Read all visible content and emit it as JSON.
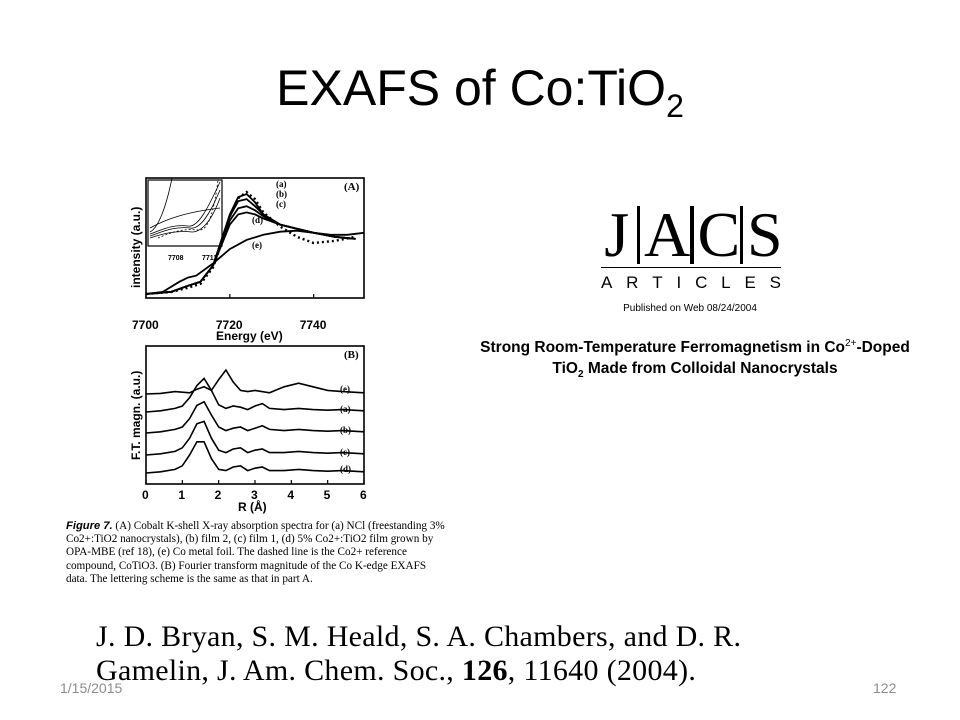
{
  "slide": {
    "title_main": "EXAFS of Co:TiO",
    "title_sub": "2",
    "date": "1/15/2015",
    "page_number": "122"
  },
  "jacs": {
    "letters": [
      "J",
      "A",
      "C",
      "S"
    ],
    "articles": [
      "A",
      "R",
      "T",
      "I",
      "C",
      "L",
      "E",
      "S"
    ],
    "published": "Published on Web 08/24/2004",
    "title_line1_a": "Strong Room-Temperature Ferromagnetism in Co",
    "title_line1_sup": "2+",
    "title_line1_b": "-Doped",
    "title_line2_a": "TiO",
    "title_line2_sub": "2",
    "title_line2_b": " Made from Colloidal Nanocrystals"
  },
  "figure": {
    "caption_label": "Figure 7.",
    "caption_text": "(A) Cobalt K-shell X-ray absorption spectra for (a) NCl (freestanding 3% Co2+:TiO2 nanocrystals), (b) film 2, (c) film 1, (d) 5% Co2+:TiO2 film grown by OPA-MBE (ref 18), (e) Co metal foil. The dashed line is the Co2+ reference compound, CoTiO3. (B) Fourier transform magnitude of the Co K-edge EXAFS data. The lettering scheme is the same as that in part A."
  },
  "citation": {
    "line1": "J. D. Bryan, S. M. Heald, S. A. Chambers,  and D. R.",
    "line2_a": "Gamelin, J. Am. Chem. Soc., ",
    "line2_bold": "126",
    "line2_b": ", 11640 (2004)."
  },
  "chart_data": [
    {
      "type": "line",
      "panel_label": "(A)",
      "xlabel": "Energy (eV)",
      "ylabel": "intensity (a.u.)",
      "x_ticks": [
        7700,
        7720,
        7740
      ],
      "xlim": [
        7700,
        7752
      ],
      "series_labels": [
        "(a)",
        "(b)",
        "(c)",
        "(d)",
        "(e)"
      ],
      "inset": {
        "x_ticks": [
          7708,
          7712
        ]
      },
      "series": [
        {
          "name": "(a)",
          "x": [
            7700,
            7706,
            7710,
            7713,
            7716,
            7718,
            7720,
            7722,
            7724,
            7726,
            7728,
            7732,
            7736,
            7740,
            7745,
            7750
          ],
          "y": [
            0.02,
            0.04,
            0.1,
            0.14,
            0.3,
            0.55,
            0.8,
            0.97,
            1.0,
            0.92,
            0.8,
            0.7,
            0.66,
            0.62,
            0.58,
            0.56
          ]
        },
        {
          "name": "(b)",
          "x": [
            7700,
            7706,
            7710,
            7713,
            7716,
            7718,
            7720,
            7722,
            7724,
            7726,
            7728,
            7732,
            7736,
            7740,
            7745,
            7750
          ],
          "y": [
            0.02,
            0.04,
            0.1,
            0.14,
            0.3,
            0.55,
            0.78,
            0.93,
            0.95,
            0.88,
            0.8,
            0.7,
            0.66,
            0.62,
            0.58,
            0.56
          ]
        },
        {
          "name": "(c)",
          "x": [
            7700,
            7706,
            7710,
            7713,
            7716,
            7718,
            7720,
            7722,
            7724,
            7726,
            7728,
            7732,
            7736,
            7740,
            7745,
            7750
          ],
          "y": [
            0.02,
            0.04,
            0.1,
            0.14,
            0.3,
            0.52,
            0.74,
            0.86,
            0.88,
            0.84,
            0.78,
            0.7,
            0.66,
            0.62,
            0.58,
            0.56
          ]
        },
        {
          "name": "(d)",
          "x": [
            7700,
            7706,
            7710,
            7713,
            7716,
            7718,
            7720,
            7722,
            7724,
            7726,
            7728,
            7732,
            7736,
            7740,
            7745,
            7750
          ],
          "y": [
            0.02,
            0.04,
            0.1,
            0.14,
            0.3,
            0.5,
            0.7,
            0.8,
            0.82,
            0.8,
            0.76,
            0.7,
            0.66,
            0.62,
            0.58,
            0.56
          ]
        },
        {
          "name": "(e)",
          "x": [
            7700,
            7704,
            7708,
            7710,
            7712,
            7716,
            7720,
            7724,
            7728,
            7732,
            7736,
            7740,
            7744,
            7748,
            7752
          ],
          "y": [
            0.02,
            0.04,
            0.14,
            0.18,
            0.2,
            0.32,
            0.46,
            0.55,
            0.6,
            0.63,
            0.64,
            0.62,
            0.6,
            0.6,
            0.62
          ]
        },
        {
          "name": "CoTiO3",
          "dashed": true,
          "x": [
            7700,
            7706,
            7710,
            7713,
            7716,
            7718,
            7720,
            7722,
            7724,
            7726,
            7728,
            7732,
            7736,
            7740,
            7745,
            7750
          ],
          "y": [
            0.02,
            0.04,
            0.08,
            0.12,
            0.28,
            0.52,
            0.78,
            0.96,
            1.02,
            0.95,
            0.82,
            0.68,
            0.58,
            0.52,
            0.54,
            0.58
          ]
        }
      ]
    },
    {
      "type": "line",
      "panel_label": "(B)",
      "xlabel": "R (Å)",
      "ylabel": "F.T. magn. (a.u.)",
      "x_ticks": [
        0,
        1,
        2,
        3,
        4,
        5,
        6
      ],
      "xlim": [
        0,
        6
      ],
      "series_labels": [
        "(e)",
        "(a)",
        "(b)",
        "(c)",
        "(d)"
      ],
      "series": [
        {
          "name": "(e)",
          "offset": 4,
          "x": [
            0,
            0.4,
            0.8,
            1.0,
            1.2,
            1.4,
            1.6,
            1.8,
            2.0,
            2.2,
            2.4,
            2.6,
            2.8,
            3.0,
            3.4,
            3.8,
            4.2,
            4.6,
            5.0,
            5.4,
            6.0
          ],
          "y": [
            0,
            0.05,
            0.2,
            0.15,
            0.1,
            0.4,
            0.6,
            0.3,
            1.2,
            2.0,
            1.0,
            0.3,
            0.2,
            0.3,
            0.1,
            0.6,
            0.9,
            0.6,
            0.3,
            0.2,
            0.1
          ]
        },
        {
          "name": "(a)",
          "offset": 3,
          "x": [
            0,
            0.4,
            0.8,
            1.0,
            1.2,
            1.4,
            1.6,
            1.8,
            2.0,
            2.2,
            2.4,
            2.6,
            2.8,
            3.0,
            3.2,
            3.4,
            3.8,
            4.2,
            4.6,
            5.0,
            5.4,
            6.0
          ],
          "y": [
            0,
            0.1,
            0.3,
            0.5,
            1.2,
            2.2,
            2.8,
            1.8,
            0.6,
            0.3,
            0.5,
            0.4,
            0.2,
            0.5,
            0.7,
            0.3,
            0.2,
            0.3,
            0.2,
            0.15,
            0.2,
            0.1
          ]
        },
        {
          "name": "(b)",
          "offset": 2,
          "x": [
            0,
            0.4,
            0.8,
            1.0,
            1.2,
            1.4,
            1.6,
            1.8,
            2.0,
            2.2,
            2.4,
            2.6,
            2.8,
            3.0,
            3.2,
            3.4,
            3.8,
            4.2,
            4.6,
            5.0,
            5.4,
            6.0
          ],
          "y": [
            0,
            0.1,
            0.3,
            0.5,
            1.2,
            2.3,
            2.6,
            1.5,
            0.5,
            0.2,
            0.4,
            0.5,
            0.2,
            0.4,
            0.6,
            0.3,
            0.2,
            0.3,
            0.2,
            0.15,
            0.2,
            0.1
          ]
        },
        {
          "name": "(c)",
          "offset": 1,
          "x": [
            0,
            0.4,
            0.8,
            1.0,
            1.2,
            1.4,
            1.6,
            1.8,
            2.0,
            2.2,
            2.4,
            2.6,
            2.8,
            3.0,
            3.2,
            3.4,
            3.8,
            4.2,
            4.6,
            5.0,
            5.4,
            6.0
          ],
          "y": [
            0,
            0.1,
            0.3,
            0.6,
            1.4,
            2.6,
            2.8,
            1.4,
            0.4,
            0.2,
            0.5,
            0.6,
            0.2,
            0.4,
            0.5,
            0.2,
            0.2,
            0.3,
            0.2,
            0.15,
            0.2,
            0.1
          ]
        },
        {
          "name": "(d)",
          "offset": 0,
          "x": [
            0,
            0.4,
            0.8,
            1.0,
            1.2,
            1.4,
            1.6,
            1.8,
            2.0,
            2.2,
            2.4,
            2.6,
            2.8,
            3.0,
            3.2,
            3.4,
            3.8,
            4.2,
            4.6,
            5.0,
            5.4,
            6.0
          ],
          "y": [
            0,
            0.1,
            0.3,
            0.6,
            1.5,
            2.6,
            2.6,
            1.2,
            0.3,
            0.2,
            0.5,
            0.6,
            0.2,
            0.4,
            0.5,
            0.2,
            0.2,
            0.3,
            0.2,
            0.15,
            0.2,
            0.1
          ]
        }
      ]
    }
  ]
}
